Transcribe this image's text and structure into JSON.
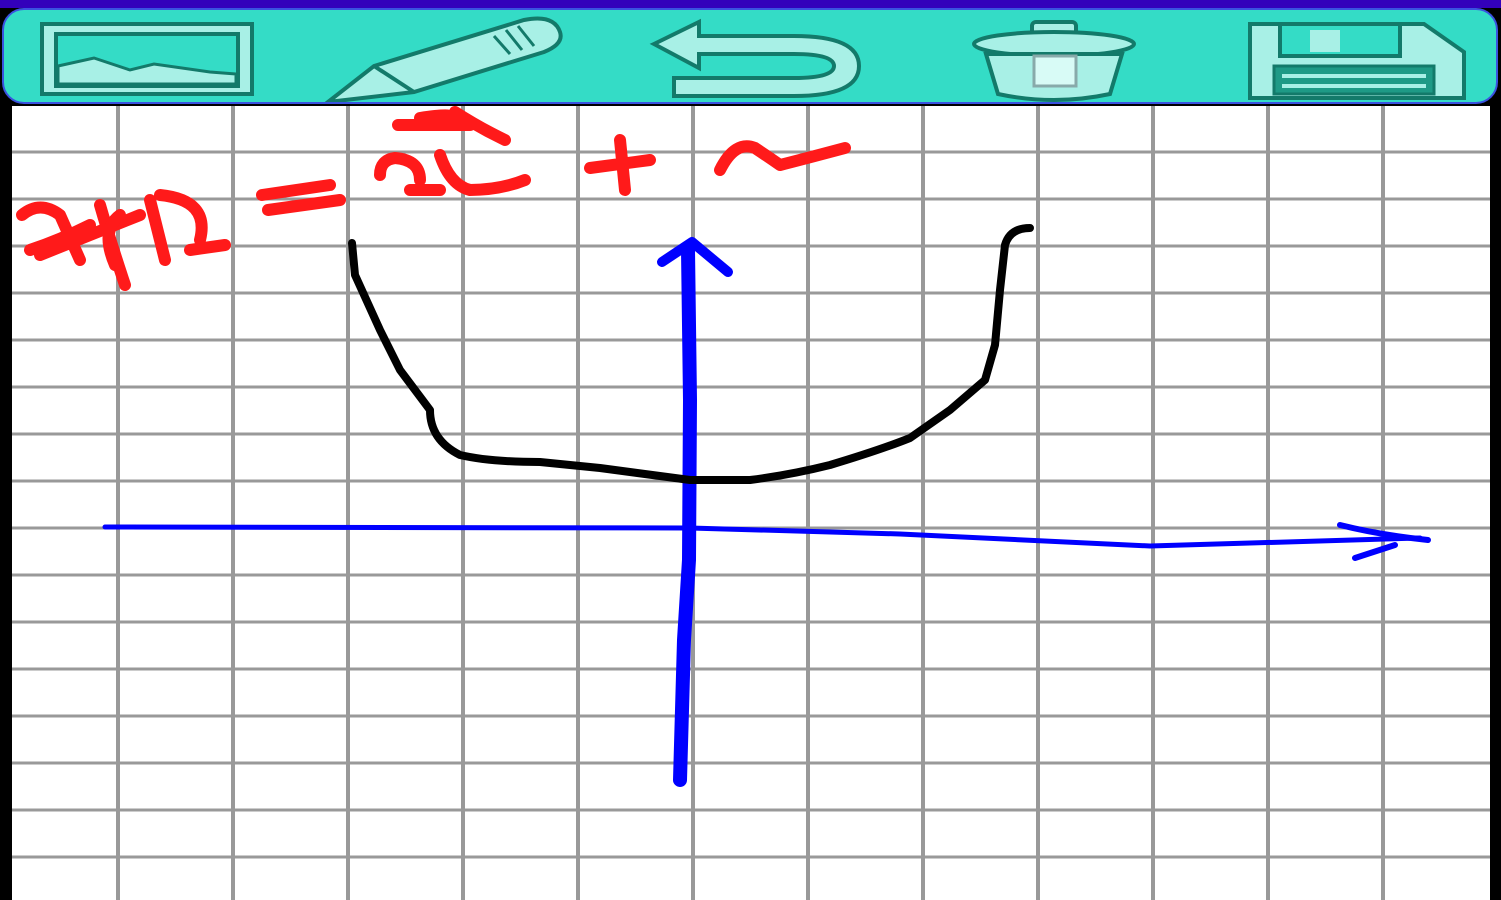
{
  "toolbar": {
    "tools": [
      {
        "id": "background",
        "icon": "image-icon"
      },
      {
        "id": "pen",
        "icon": "pencil-icon"
      },
      {
        "id": "undo",
        "icon": "undo-icon"
      },
      {
        "id": "clear",
        "icon": "trash-icon"
      },
      {
        "id": "save",
        "icon": "save-icon"
      }
    ],
    "colors": {
      "bar": "#34dcc6",
      "icon_fill": "#a8f0e6",
      "icon_stroke": "#137a6a",
      "border": "#3a52e0"
    }
  },
  "canvas": {
    "background": "graph-paper",
    "grid_color": "#999999",
    "strokes": [
      {
        "id": "formula",
        "color": "#ff1a1a"
      },
      {
        "id": "axes",
        "color": "#0000ff"
      },
      {
        "id": "curve",
        "color": "#000000"
      }
    ]
  }
}
